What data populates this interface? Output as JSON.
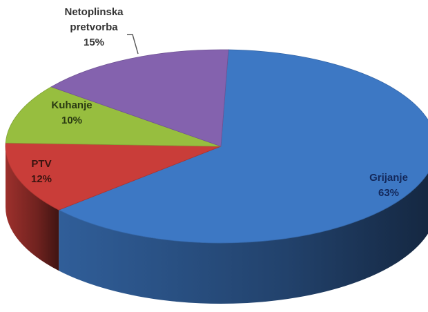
{
  "chart_data": {
    "type": "pie",
    "title": "",
    "slices": [
      {
        "label": "Grijanje",
        "value": 63,
        "value_label": "63%",
        "color": "#3d78c4",
        "label_color": "#13285a"
      },
      {
        "label": "PTV",
        "value": 12,
        "value_label": "12%",
        "color": "#c93d39",
        "label_color": "#3a1410"
      },
      {
        "label": "Kuhanje",
        "value": 10,
        "value_label": "10%",
        "color": "#97be3f",
        "label_color": "#2a3a12"
      },
      {
        "label": "Netoplinska pretvorba",
        "label_lines": [
          "Netoplinska",
          "pretvorba"
        ],
        "value": 15,
        "value_label": "15%",
        "color": "#8462ae",
        "label_color": "#333333"
      }
    ],
    "style": "3d",
    "legend": "none"
  }
}
